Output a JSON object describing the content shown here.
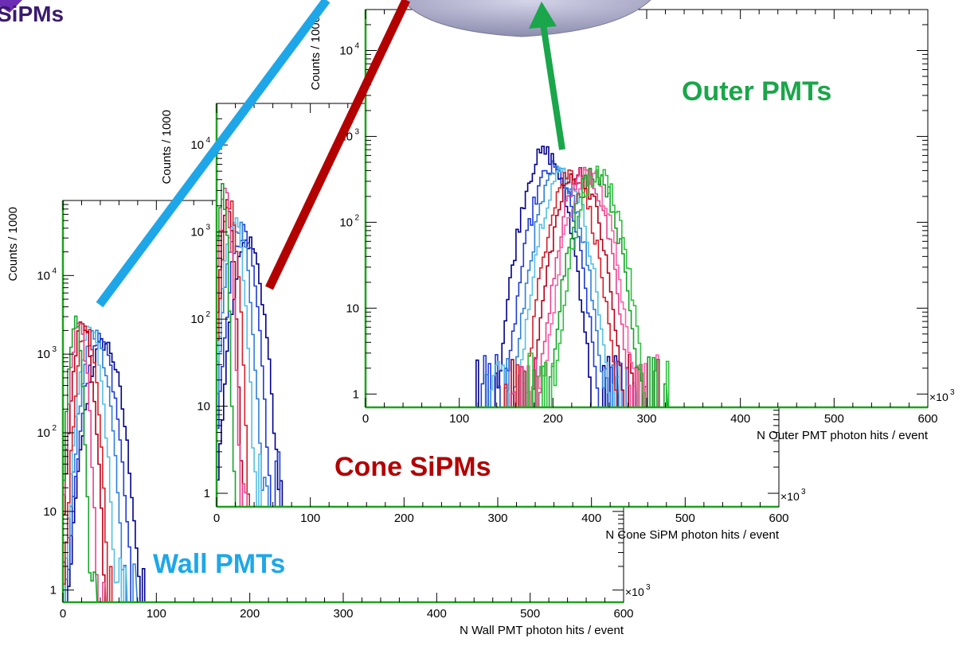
{
  "annotations": {
    "top_left": "SiPMs",
    "outer": "Outer PMTs",
    "cone": "Cone SiPMs",
    "wall": "Wall PMTs"
  },
  "colors": {
    "frame": "#1ea31e",
    "outer_label": "#1aa64a",
    "cone_label": "#b30000",
    "wall_label": "#1ea7e8",
    "arrow_purple": "#6a2db3",
    "sphere": "#a8a8c6"
  },
  "chart_data": [
    {
      "id": "outer",
      "type": "line",
      "log_y": true,
      "ylabel": "Counts / 1000",
      "xlabel": "N Outer PMT photon hits / event",
      "x_multiplier": "×10",
      "x_multiplier_exp": "3",
      "xlim": [
        0,
        600
      ],
      "ylim": [
        0.7,
        30000
      ],
      "x_ticks": [
        "0",
        "100",
        "200",
        "300",
        "400",
        "500",
        "600"
      ],
      "y_ticks": [
        {
          "v": 1,
          "label": "1"
        },
        {
          "v": 10,
          "label": "10"
        },
        {
          "v": 100,
          "label": "10",
          "exp": "2"
        },
        {
          "v": 1000,
          "label": "10",
          "exp": "3"
        },
        {
          "v": 10000,
          "label": "10",
          "exp": "4"
        }
      ],
      "series": [
        {
          "color": "#00008b",
          "mean": 190,
          "sigma": 14,
          "peak": 650
        },
        {
          "color": "#1f3bd6",
          "mean": 198,
          "sigma": 14,
          "peak": 420
        },
        {
          "color": "#2f7fd9",
          "mean": 205,
          "sigma": 14,
          "peak": 380
        },
        {
          "color": "#55bfe6",
          "mean": 210,
          "sigma": 14,
          "peak": 390
        },
        {
          "color": "#d61f2a",
          "mean": 218,
          "sigma": 14,
          "peak": 380
        },
        {
          "color": "#b5001a",
          "mean": 225,
          "sigma": 14,
          "peak": 380
        },
        {
          "color": "#e6448f",
          "mean": 232,
          "sigma": 14,
          "peak": 380
        },
        {
          "color": "#ff5fa8",
          "mean": 237,
          "sigma": 14,
          "peak": 380
        },
        {
          "color": "#15a42a",
          "mean": 243,
          "sigma": 14,
          "peak": 390
        },
        {
          "color": "#2cc23c",
          "mean": 248,
          "sigma": 14,
          "peak": 370
        }
      ]
    },
    {
      "id": "cone",
      "type": "line",
      "log_y": true,
      "ylabel": "Counts / 1000",
      "xlabel": "N Cone SiPM photon hits / event",
      "x_multiplier": "×10",
      "x_multiplier_exp": "3",
      "xlim": [
        0,
        600
      ],
      "ylim": [
        0.7,
        30000
      ],
      "x_ticks": [
        "0",
        "100",
        "200",
        "300",
        "400",
        "500",
        "600"
      ],
      "y_ticks": [
        {
          "v": 1,
          "label": "1"
        },
        {
          "v": 10,
          "label": "10"
        },
        {
          "v": 100,
          "label": "10",
          "exp": "2"
        },
        {
          "v": 1000,
          "label": "10",
          "exp": "3"
        },
        {
          "v": 10000,
          "label": "10",
          "exp": "4"
        }
      ],
      "series": [
        {
          "color": "#00008b",
          "mean": 32,
          "sigma": 9,
          "peak": 800
        },
        {
          "color": "#1f3bd6",
          "mean": 26,
          "sigma": 8,
          "peak": 1000
        },
        {
          "color": "#2f7fd9",
          "mean": 21,
          "sigma": 7,
          "peak": 1300
        },
        {
          "color": "#55bfe6",
          "mean": 17,
          "sigma": 6,
          "peak": 1500
        },
        {
          "color": "#d61f2a",
          "mean": 13,
          "sigma": 5,
          "peak": 2000
        },
        {
          "color": "#b5001a",
          "mean": 10,
          "sigma": 4,
          "peak": 2300
        },
        {
          "color": "#e6448f",
          "mean": 8,
          "sigma": 4,
          "peak": 2600
        },
        {
          "color": "#15a42a",
          "mean": 5,
          "sigma": 3,
          "peak": 3000
        }
      ]
    },
    {
      "id": "wall",
      "type": "line",
      "log_y": true,
      "ylabel": "Counts / 1000",
      "xlabel": "N Wall PMT photon hits / event",
      "x_multiplier": "×10",
      "x_multiplier_exp": "3",
      "xlim": [
        0,
        600
      ],
      "ylim": [
        0.7,
        90000
      ],
      "x_ticks": [
        "0",
        "100",
        "200",
        "300",
        "400",
        "500",
        "600"
      ],
      "y_ticks": [
        {
          "v": 1,
          "label": "1"
        },
        {
          "v": 10,
          "label": "10"
        },
        {
          "v": 100,
          "label": "10",
          "exp": "2"
        },
        {
          "v": 1000,
          "label": "10",
          "exp": "3"
        },
        {
          "v": 10000,
          "label": "10",
          "exp": "4"
        }
      ],
      "series": [
        {
          "color": "#00008b",
          "mean": 43,
          "sigma": 10,
          "peak": 1400
        },
        {
          "color": "#1f3bd6",
          "mean": 38,
          "sigma": 9,
          "peak": 1600
        },
        {
          "color": "#2f7fd9",
          "mean": 33,
          "sigma": 8,
          "peak": 1800
        },
        {
          "color": "#55bfe6",
          "mean": 28,
          "sigma": 7,
          "peak": 2000
        },
        {
          "color": "#d61f2a",
          "mean": 24,
          "sigma": 6,
          "peak": 2100
        },
        {
          "color": "#b5001a",
          "mean": 20,
          "sigma": 6,
          "peak": 2300
        },
        {
          "color": "#e6448f",
          "mean": 16,
          "sigma": 5,
          "peak": 2400
        },
        {
          "color": "#15a42a",
          "mean": 12,
          "sigma": 4,
          "peak": 2600
        }
      ]
    }
  ]
}
